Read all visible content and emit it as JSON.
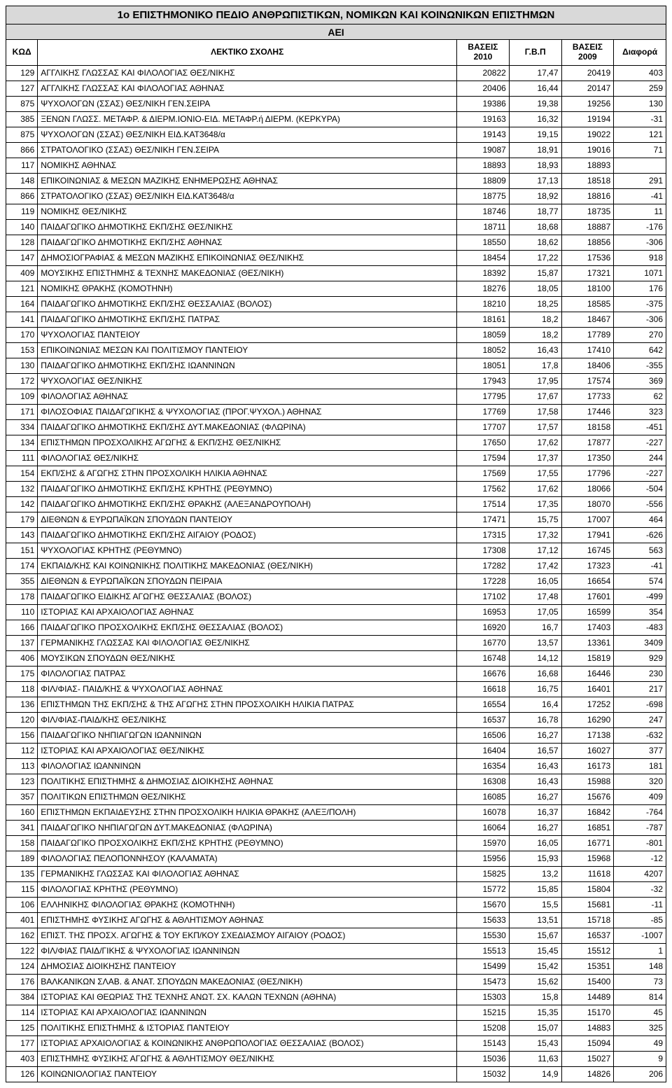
{
  "title": "1ο ΕΠΙΣΤΗΜΟΝΙΚΟ ΠΕΔΙΟ ΑΝΘΡΩΠΙΣΤΙΚΩΝ, ΝΟΜΙΚΩΝ ΚΑΙ ΚΟΙΝΩΝΙΚΩΝ ΕΠΙΣΤΗΜΩΝ",
  "subtitle": "ΑΕΙ",
  "columns": [
    "ΚΩΔ",
    "ΛΕΚΤΙΚΟ ΣΧΟΛΗΣ",
    "ΒΑΣΕΙΣ 2010",
    "Γ.Β.Π",
    "ΒΑΣΕΙΣ 2009",
    "Διαφορά"
  ],
  "rows": [
    [
      "129",
      "ΑΓΓΛΙΚΗΣ  ΓΛΩΣΣΑΣ  ΚΑΙ  ΦΙΛΟΛΟΓΙΑΣ ΘΕΣ/ΝΙΚΗΣ",
      "20822",
      "17,47",
      "20419",
      "403"
    ],
    [
      "127",
      "ΑΓΓΛΙΚΗΣ  ΓΛΩΣΣΑΣ  ΚΑΙ  ΦΙΛΟΛΟΓΙΑΣ ΑΘΗΝΑΣ",
      "20406",
      "16,44",
      "20147",
      "259"
    ],
    [
      "875",
      "ΨΥΧΟΛΟΓΩΝ     (ΣΣΑΣ)  ΘΕΣ/ΝΙΚΗ                              ΓΕΝ.ΣΕΙΡΑ",
      "19386",
      "19,38",
      "19256",
      "130"
    ],
    [
      "385",
      "ΞΕΝΩΝ ΓΛΩΣΣ. ΜΕΤΑΦΡ. & ΔΙΕΡΜ.ΙΟΝΙΟ-ΕΙΔ. ΜΕΤΑΦΡ.ή ΔΙΕΡΜ. (ΚΕΡΚΥΡΑ)",
      "19163",
      "16,32",
      "19194",
      "-31"
    ],
    [
      "875",
      "ΨΥΧΟΛΟΓΩΝ     (ΣΣΑΣ)  ΘΕΣ/ΝΙΚΗ                              ΕΙΔ.ΚΑΤ3648/α",
      "19143",
      "19,15",
      "19022",
      "121"
    ],
    [
      "866",
      "ΣΤΡΑΤΟΛΟΓΙΚΟ  (ΣΣΑΣ)  ΘΕΣ/ΝΙΚΗ                            ΓΕΝ.ΣΕΙΡΑ",
      "19087",
      "18,91",
      "19016",
      "71"
    ],
    [
      "117",
      "ΝΟΜΙΚΗΣ ΑΘΗΝΑΣ",
      "18893",
      "18,93",
      "18893",
      ""
    ],
    [
      "148",
      "ΕΠΙΚΟΙΝΩΝΙΑΣ & ΜΕΣΩΝ  ΜΑΖΙΚΗΣ ΕΝΗΜΕΡΩΣΗΣ ΑΘΗΝΑΣ",
      "18809",
      "17,13",
      "18518",
      "291"
    ],
    [
      "866",
      "ΣΤΡΑΤΟΛΟΓΙΚΟ  (ΣΣΑΣ)  ΘΕΣ/ΝΙΚΗ                  ΕΙΔ.ΚΑΤ3648/α",
      "18775",
      "18,92",
      "18816",
      "-41"
    ],
    [
      "119",
      "ΝΟΜΙΚΗΣ ΘΕΣ/ΝΙΚΗΣ",
      "18746",
      "18,77",
      "18735",
      "11"
    ],
    [
      "140",
      "ΠΑΙΔΑΓΩΓΙΚΟ  ΔΗΜΟΤΙΚΗΣ ΕΚΠ/ΣΗΣ ΘΕΣ/ΝΙΚΗΣ",
      "18711",
      "18,68",
      "18887",
      "-176"
    ],
    [
      "128",
      "ΠΑΙΔΑΓΩΓΙΚΟ  ΔΗΜΟΤΙΚΗΣ ΕΚΠ/ΣΗΣ ΑΘΗΝΑΣ",
      "18550",
      "18,62",
      "18856",
      "-306"
    ],
    [
      "147",
      "ΔΗΜΟΣΙΟΓΡΑΦΙΑΣ & ΜΕΣΩΝ ΜΑΖΙΚΗΣ ΕΠΙΚΟΙΝΩΝΙΑΣ ΘΕΣ/ΝΙΚΗΣ",
      "18454",
      "17,22",
      "17536",
      "918"
    ],
    [
      "409",
      "ΜΟΥΣΙΚΗΣ ΕΠΙΣΤΗΜΗΣ & ΤΕΧΝΗΣ  ΜΑΚΕΔΟΝΙΑΣ (ΘΕΣ/ΝΙΚΗ)",
      "18392",
      "15,87",
      "17321",
      "1071"
    ],
    [
      "121",
      "ΝΟΜΙΚΗΣ  ΘΡΑΚΗΣ (ΚΟΜΟΤΗΝΗ)",
      "18276",
      "18,05",
      "18100",
      "176"
    ],
    [
      "164",
      "ΠΑΙΔΑΓΩΓΙΚΟ  ΔΗΜΟΤΙΚΗΣ ΕΚΠ/ΣΗΣ   ΘΕΣΣΑΛΙΑΣ (ΒΟΛΟΣ)",
      "18210",
      "18,25",
      "18585",
      "-375"
    ],
    [
      "141",
      "ΠΑΙΔΑΓΩΓΙΚΟ  ΔΗΜΟΤΙΚΗΣ ΕΚΠ/ΣΗΣ  ΠΑΤΡΑΣ",
      "18161",
      "18,2",
      "18467",
      "-306"
    ],
    [
      "170",
      "ΨΥΧΟΛΟΓΙΑΣ ΠΑΝΤΕΙΟΥ",
      "18059",
      "18,2",
      "17789",
      "270"
    ],
    [
      "153",
      "ΕΠΙΚΟΙΝΩΝΙΑΣ ΜΕΣΩΝ  ΚΑΙ ΠΟΛΙΤΙΣΜΟΥ ΠΑΝΤΕΙΟΥ",
      "18052",
      "16,43",
      "17410",
      "642"
    ],
    [
      "130",
      "ΠΑΙΔΑΓΩΓΙΚΟ  ΔΗΜΟΤΙΚΗΣ ΕΚΠ/ΣΗΣ   ΙΩΑΝΝΙΝΩΝ",
      "18051",
      "17,8",
      "18406",
      "-355"
    ],
    [
      "172",
      "ΨΥΧΟΛΟΓΙΑΣ ΘΕΣ/ΝΙΚΗΣ",
      "17943",
      "17,95",
      "17574",
      "369"
    ],
    [
      "109",
      "ΦΙΛΟΛΟΓΙΑΣ ΑΘΗΝΑΣ",
      "17795",
      "17,67",
      "17733",
      "62"
    ],
    [
      "171",
      "ΦΙΛΟΣΟΦΙΑΣ ΠΑΙΔΑΓΩΓΙΚΗΣ  & ΨΥΧΟΛΟΓΙΑΣ (ΠΡΟΓ.ΨΥΧΟΛ.) ΑΘΗΝΑΣ",
      "17769",
      "17,58",
      "17446",
      "323"
    ],
    [
      "334",
      "ΠΑΙΔΑΓΩΓΙΚΟ  ΔΗΜΟΤΙΚΗΣ ΕΚΠ/ΣΗΣ ΔΥΤ.ΜΑΚΕΔΟΝΙΑΣ (ΦΛΩΡΙΝΑ)",
      "17707",
      "17,57",
      "18158",
      "-451"
    ],
    [
      "134",
      "ΕΠΙΣΤΗΜΩΝ ΠΡΟΣΧΟΛΙΚΗΣ ΑΓΩΓΗΣ & ΕΚΠ/ΣΗΣ ΘΕΣ/ΝΙΚΗΣ",
      "17650",
      "17,62",
      "17877",
      "-227"
    ],
    [
      "111",
      "ΦΙΛΟΛΟΓΙΑΣ ΘΕΣ/ΝΙΚΗΣ",
      "17594",
      "17,37",
      "17350",
      "244"
    ],
    [
      "154",
      "ΕΚΠ/ΣΗΣ & ΑΓΩΓΗΣ ΣΤΗΝ ΠΡΟΣΧΟΛΙΚΗ ΗΛΙΚΙΑ ΑΘΗΝΑΣ",
      "17569",
      "17,55",
      "17796",
      "-227"
    ],
    [
      "132",
      "ΠΑΙΔΑΓΩΓΙΚΟ ΔΗΜΟΤΙΚΗΣ ΕΚΠ/ΣΗΣ ΚΡΗΤΗΣ (ΡΕΘΥΜΝΟ)",
      "17562",
      "17,62",
      "18066",
      "-504"
    ],
    [
      "142",
      "ΠΑΙΔΑΓΩΓΙΚΟ  ΔΗΜΟΤΙΚΗΣ ΕΚΠ/ΣΗΣ  ΘΡΑΚΗΣ (ΑΛΕΞΑΝΔΡΟΥΠΟΛΗ)",
      "17514",
      "17,35",
      "18070",
      "-556"
    ],
    [
      "179",
      "ΔΙΕΘΝΩΝ & ΕΥΡΩΠΑΪΚΩΝ ΣΠΟΥΔΩΝ ΠΑΝΤΕΙΟΥ",
      "17471",
      "15,75",
      "17007",
      "464"
    ],
    [
      "143",
      "ΠΑΙΔΑΓΩΓΙΚΟ  ΔΗΜΟΤΙΚΗΣ ΕΚΠ/ΣΗΣ  ΑΙΓΑΙΟΥ (ΡΟΔΟΣ)",
      "17315",
      "17,32",
      "17941",
      "-626"
    ],
    [
      "151",
      "ΨΥΧΟΛΟΓΙΑΣ  ΚΡΗΤΗΣ (ΡΕΘΥΜΝΟ)",
      "17308",
      "17,12",
      "16745",
      "563"
    ],
    [
      "174",
      "ΕΚΠΑΙΔ/ΚΗΣ ΚΑΙ ΚΟΙΝΩΝΙΚΗΣ ΠΟΛΙΤΙΚΗΣ ΜΑΚΕΔΟΝΙΑΣ (ΘΕΣ/ΝΙΚΗ)",
      "17282",
      "17,42",
      "17323",
      "-41"
    ],
    [
      "355",
      "ΔΙΕΘΝΩΝ & ΕΥΡΩΠΑΪΚΩΝ ΣΠΟΥΔΩΝ ΠΕΙΡΑΙΑ",
      "17228",
      "16,05",
      "16654",
      "574"
    ],
    [
      "178",
      "ΠΑΙΔΑΓΩΓΙΚΟ ΕΙΔΙΚΗΣ ΑΓΩΓΗΣ  ΘΕΣΣΑΛΙΑΣ (ΒΟΛΟΣ)",
      "17102",
      "17,48",
      "17601",
      "-499"
    ],
    [
      "110",
      "ΙΣΤΟΡΙΑΣ  ΚΑΙ  ΑΡΧΑΙΟΛΟΓΙΑΣ ΑΘΗΝΑΣ",
      "16953",
      "17,05",
      "16599",
      "354"
    ],
    [
      "166",
      "ΠΑΙΔΑΓΩΓΙΚΟ  ΠΡΟΣΧΟΛΙΚΗΣ ΕΚΠ/ΣΗΣ ΘΕΣΣΑΛΙΑΣ (ΒΟΛΟΣ)",
      "16920",
      "16,7",
      "17403",
      "-483"
    ],
    [
      "137",
      "ΓΕΡΜΑΝΙΚΗΣ  ΓΛΩΣΣΑΣ  ΚΑΙ  ΦΙΛΟΛΟΓΙΑΣ ΘΕΣ/ΝΙΚΗΣ",
      "16770",
      "13,57",
      "13361",
      "3409"
    ],
    [
      "406",
      "ΜΟΥΣΙΚΩΝ  ΣΠΟΥΔΩΝ ΘΕΣ/ΝΙΚΗΣ",
      "16748",
      "14,12",
      "15819",
      "929"
    ],
    [
      "175",
      "ΦΙΛΟΛΟΓΙΑΣ  ΠΑΤΡΑΣ",
      "16676",
      "16,68",
      "16446",
      "230"
    ],
    [
      "118",
      "ΦΙΛ/ΦΙΑΣ- ΠΑΙΔ/ΚΗΣ & ΨΥΧΟΛΟΓΙΑΣ ΑΘΗΝΑΣ",
      "16618",
      "16,75",
      "16401",
      "217"
    ],
    [
      "136",
      "ΕΠΙΣΤΗΜΩΝ ΤΗΣ ΕΚΠ/ΣΗΣ & ΤΗΣ ΑΓΩΓΗΣ ΣΤΗΝ ΠΡΟΣΧΟΛΙΚΗ ΗΛΙΚΙΑ  ΠΑΤΡΑΣ",
      "16554",
      "16,4",
      "17252",
      "-698"
    ],
    [
      "120",
      "ΦΙΛ/ΦΙΑΣ-ΠΑΙΔ/ΚΗΣ ΘΕΣ/ΝΙΚΗΣ",
      "16537",
      "16,78",
      "16290",
      "247"
    ],
    [
      "156",
      "ΠΑΙΔΑΓΩΓΙΚΟ  ΝΗΠΙΑΓΩΓΩΝ   ΙΩΑΝΝΙΝΩΝ",
      "16506",
      "16,27",
      "17138",
      "-632"
    ],
    [
      "112",
      "ΙΣΤΟΡΙΑΣ  ΚΑΙ  ΑΡΧΑΙΟΛΟΓΙΑΣ ΘΕΣ/ΝΙΚΗΣ",
      "16404",
      "16,57",
      "16027",
      "377"
    ],
    [
      "113",
      "ΦΙΛΟΛΟΓΙΑΣ   ΙΩΑΝΝΙΝΩΝ",
      "16354",
      "16,43",
      "16173",
      "181"
    ],
    [
      "123",
      "ΠΟΛΙΤΙΚΗΣ  ΕΠΙΣΤΗΜΗΣ & ΔΗΜΟΣΙΑΣ ΔΙΟΙΚΗΣΗΣ ΑΘΗΝΑΣ",
      "16308",
      "16,43",
      "15988",
      "320"
    ],
    [
      "357",
      "ΠΟΛΙΤΙΚΩΝ ΕΠΙΣΤΗΜΩΝ ΘΕΣ/ΝΙΚΗΣ",
      "16085",
      "16,27",
      "15676",
      "409"
    ],
    [
      "160",
      "ΕΠΙΣΤΗΜΩΝ ΕΚΠΑΙΔΕΥΣΗΣ ΣΤΗΝ ΠΡΟΣΧΟΛΙΚΗ ΗΛΙΚΙΑ ΘΡΑΚΗΣ (ΑΛΕΞ/ΠΟΛΗ)",
      "16078",
      "16,37",
      "16842",
      "-764"
    ],
    [
      "341",
      "ΠΑΙΔΑΓΩΓΙΚΟ ΝΗΠΙΑΓΩΓΩΝ ΔΥΤ.ΜΑΚΕΔΟΝΙΑΣ (ΦΛΩΡΙΝΑ)",
      "16064",
      "16,27",
      "16851",
      "-787"
    ],
    [
      "158",
      "ΠΑΙΔΑΓΩΓΙΚΟ  ΠΡΟΣΧΟΛΙΚΗΣ ΕΚΠ/ΣΗΣ ΚΡΗΤΗΣ (ΡΕΘΥΜΝΟ)",
      "15970",
      "16,05",
      "16771",
      "-801"
    ],
    [
      "189",
      "ΦΙΛΟΛΟΓΙΑΣ  ΠΕΛΟΠΟΝΝΗΣΟΥ (ΚΑΛΑΜΑΤΑ)",
      "15956",
      "15,93",
      "15968",
      "-12"
    ],
    [
      "135",
      "ΓΕΡΜΑΝΙΚΗΣ  ΓΛΩΣΣΑΣ  ΚΑΙ  ΦΙΛΟΛΟΓΙΑΣ ΑΘΗΝΑΣ",
      "15825",
      "13,2",
      "11618",
      "4207"
    ],
    [
      "115",
      "ΦΙΛΟΛΟΓΙΑΣ  ΚΡΗΤΗΣ (ΡΕΘΥΜΝΟ)",
      "15772",
      "15,85",
      "15804",
      "-32"
    ],
    [
      "106",
      "ΕΛΛΗΝΙΚΗΣ  ΦΙΛΟΛΟΓΙΑΣ  ΘΡΑΚΗΣ (ΚΟΜΟΤΗΝΗ)",
      "15670",
      "15,5",
      "15681",
      "-11"
    ],
    [
      "401",
      "ΕΠΙΣΤΗΜΗΣ ΦΥΣΙΚΗΣ ΑΓΩΓΗΣ &   ΑΘΛΗΤΙΣΜΟΥ ΑΘΗΝΑΣ",
      "15633",
      "13,51",
      "15718",
      "-85"
    ],
    [
      "162",
      "ΕΠΙΣΤ. ΤΗΣ ΠΡΟΣΧ. ΑΓΩΓΗΣ & ΤΟΥ ΕΚΠ/ΚΟΥ ΣΧΕΔΙΑΣΜΟΥ ΑΙΓΑΙΟΥ (ΡΟΔΟΣ)",
      "15530",
      "15,67",
      "16537",
      "-1007"
    ],
    [
      "122",
      "ΦΙΛ/ΦΙΑΣ ΠΑΙΔ/ΓΙΚΗΣ & ΨΥΧΟΛΟΓΙΑΣ   ΙΩΑΝΝΙΝΩΝ",
      "15513",
      "15,45",
      "15512",
      "1"
    ],
    [
      "124",
      "ΔΗΜΟΣΙΑΣ ΔΙΟΙΚΗΣΗΣ ΠΑΝΤΕΙΟΥ",
      "15499",
      "15,42",
      "15351",
      "148"
    ],
    [
      "176",
      "ΒΑΛΚΑΝΙΚΩΝ  ΣΛΑΒ. & ΑΝΑΤ. ΣΠΟΥΔΩΝ  ΜΑΚΕΔΟΝΙΑΣ (ΘΕΣ/ΝΙΚΗ)",
      "15473",
      "15,62",
      "15400",
      "73"
    ],
    [
      "384",
      "ΙΣΤΟΡΙΑΣ ΚΑΙ ΘΕΩΡΙΑΣ ΤΗΣ ΤΕΧΝΗΣ ΑΝΩΤ. ΣΧ. ΚΑΛΩΝ ΤΕΧΝΩΝ (ΑΘΗΝΑ)",
      "15303",
      "15,8",
      "14489",
      "814"
    ],
    [
      "114",
      "ΙΣΤΟΡΙΑΣ  ΚΑΙ  ΑΡΧΑΙΟΛΟΓΙΑΣ   ΙΩΑΝΝΙΝΩΝ",
      "15215",
      "15,35",
      "15170",
      "45"
    ],
    [
      "125",
      "ΠΟΛΙΤΙΚΗΣ ΕΠΙΣΤΗΜΗΣ & ΙΣΤΟΡΙΑΣ ΠΑΝΤΕΙΟΥ",
      "15208",
      "15,07",
      "14883",
      "325"
    ],
    [
      "177",
      "ΙΣΤΟΡΙΑΣ ΑΡΧΑΙΟΛΟΓΙΑΣ &   ΚΟΙΝΩΝΙΚΗΣ ΑΝΘΡΩΠΟΛΟΓΙΑΣ ΘΕΣΣΑΛΙΑΣ (ΒΟΛΟΣ)",
      "15143",
      "15,43",
      "15094",
      "49"
    ],
    [
      "403",
      "ΕΠΙΣΤΗΜΗΣ ΦΥΣΙΚΗΣ  ΑΓΩΓΗΣ & ΑΘΛΗΤΙΣΜΟΥ ΘΕΣ/ΝΙΚΗΣ",
      "15036",
      "11,63",
      "15027",
      "9"
    ],
    [
      "126",
      "ΚΟΙΝΩΝΙΟΛΟΓΙΑΣ ΠΑΝΤΕΙΟΥ",
      "15032",
      "14,9",
      "14826",
      "206"
    ]
  ]
}
